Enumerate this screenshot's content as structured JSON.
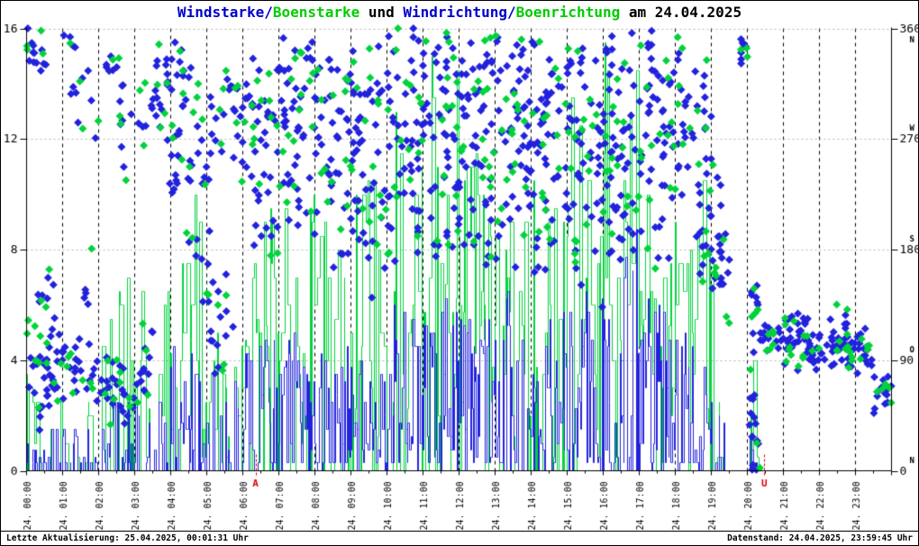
{
  "title": {
    "full": "Windstarke/Boenstarke und Windrichtung/Boenrichtung am 24.04.2025",
    "segments": [
      {
        "text": "Windstarke/",
        "color": "#0000cc"
      },
      {
        "text": "Boenstarke",
        "color": "#00cc00"
      },
      {
        "text": " und ",
        "color": "#000000"
      },
      {
        "text": "Windrichtung/",
        "color": "#0000cc"
      },
      {
        "text": "Boenrichtung",
        "color": "#00cc00"
      },
      {
        "text": " am 24.04.2025",
        "color": "#000000"
      }
    ]
  },
  "status": {
    "last_update": "Letzte Aktualisierung: 25.04.2025, 00:01:31 Uhr",
    "data_state": "Datenstand: 24.04.2025, 23:59:45 Uhr"
  },
  "chart_data": {
    "type": "scatter",
    "subtype": [
      "histeps-speed-bars",
      "diamond-direction-scatter"
    ],
    "title": "Windstarke/Boenstarke und Windrichtung/Boenrichtung am 24.04.2025",
    "date": "24.04.2025",
    "x_axis": {
      "hours_start": 0,
      "hours_end": 24,
      "minor_tick_minutes": 30,
      "hour_labels": [
        "24. 00:00",
        "24. 01:00",
        "24. 02:00",
        "24. 03:00",
        "24. 04:00",
        "24. 05:00",
        "24. 06:00",
        "24. 07:00",
        "24. 08:00",
        "24. 09:00",
        "24. 10:00",
        "24. 11:00",
        "24. 12:00",
        "24. 13:00",
        "24. 14:00",
        "24. 15:00",
        "24. 16:00",
        "24. 17:00",
        "24. 18:00",
        "24. 19:00",
        "24. 20:00",
        "24. 21:00",
        "24. 22:00",
        "24. 23:00"
      ]
    },
    "y_left": {
      "min": 0,
      "max": 16,
      "ticks": [
        0,
        4,
        8,
        12,
        16
      ],
      "measure": "wind speed"
    },
    "y_right": {
      "min": 0,
      "max": 360,
      "ticks": [
        {
          "value": 0,
          "letter": "N"
        },
        {
          "value": 90,
          "letter": "O"
        },
        {
          "value": 180,
          "letter": "S"
        },
        {
          "value": 270,
          "letter": "W"
        },
        {
          "value": 360,
          "letter": "N"
        }
      ],
      "measure": "wind direction"
    },
    "grid": {
      "h_dotted_at": [
        4,
        8,
        12,
        16
      ],
      "v_dashed_every_hour": true
    },
    "colors": {
      "wind": "#2222dd",
      "gust": "#00d23c",
      "text": "#000000",
      "grid_dotted": "#b4b4b4",
      "grid_dashed": "#000000",
      "marker": "#dd0000"
    },
    "series": [
      {
        "name": "Windstarke",
        "style": "histeps",
        "color": "#2222dd",
        "axis": "left"
      },
      {
        "name": "Boenstarke",
        "style": "histeps",
        "color": "#00d23c",
        "axis": "left"
      },
      {
        "name": "Windrichtung",
        "style": "diamond-points",
        "color": "#2222dd",
        "axis": "right"
      },
      {
        "name": "Boenrichtung",
        "style": "diamond-points",
        "color": "#00d23c",
        "axis": "right"
      }
    ],
    "sun_markers": [
      {
        "label": "A",
        "hour": 6.35
      },
      {
        "label": "U",
        "hour": 20.47
      }
    ],
    "seed": 424242,
    "gust_dir_count_ratio": 0.35,
    "gust_dir_jitter_deg": 12,
    "hourly": [
      {
        "hour": 0,
        "bars": [
          2.2,
          0.45,
          5.0,
          0.45,
          0,
          1
        ],
        "dir_clusters": [
          [
            345,
            10,
            12,
            0,
            0.55
          ],
          [
            90,
            20,
            26,
            0,
            1
          ],
          [
            130,
            18,
            8,
            0.3,
            1
          ],
          [
            60,
            12,
            8,
            0.2,
            1
          ]
        ]
      },
      {
        "hour": 1,
        "bars": [
          1.6,
          0.35,
          3.0,
          0.3,
          0,
          1
        ],
        "dir_clusters": [
          [
            78,
            14,
            20,
            0,
            1
          ],
          [
            310,
            26,
            8,
            0.2,
            1
          ],
          [
            345,
            8,
            4,
            0,
            0.4
          ],
          [
            150,
            14,
            4,
            0.5,
            1
          ]
        ]
      },
      {
        "hour": 2,
        "bars": [
          2.6,
          0.45,
          7.5,
          0.4,
          0,
          1
        ],
        "dir_clusters": [
          [
            70,
            12,
            14,
            0,
            0.7
          ],
          [
            55,
            10,
            10,
            0.3,
            1
          ],
          [
            300,
            28,
            10,
            0.3,
            1
          ],
          [
            330,
            12,
            4,
            0,
            0.5
          ]
        ]
      },
      {
        "hour": 3,
        "bars": [
          3.2,
          0.5,
          7.6,
          0.5,
          0,
          1
        ],
        "dir_clusters": [
          [
            290,
            28,
            14,
            0,
            1
          ],
          [
            75,
            14,
            8,
            0,
            0.5
          ],
          [
            320,
            14,
            8,
            0.5,
            1
          ],
          [
            120,
            18,
            4,
            0,
            0.6
          ]
        ]
      },
      {
        "hour": 4,
        "bars": [
          5.0,
          0.7,
          11.0,
          0.65,
          0,
          1
        ],
        "dir_clusters": [
          [
            285,
            28,
            20,
            0,
            1
          ],
          [
            250,
            16,
            8,
            0,
            1
          ],
          [
            180,
            22,
            5,
            0.4,
            1
          ],
          [
            330,
            10,
            5,
            0,
            0.6
          ]
        ]
      },
      {
        "hour": 5,
        "bars": [
          4.0,
          0.65,
          7.5,
          0.6,
          0,
          1
        ],
        "dir_clusters": [
          [
            270,
            28,
            16,
            0,
            1
          ],
          [
            150,
            22,
            10,
            0,
            0.8
          ],
          [
            100,
            14,
            6,
            0,
            0.5
          ],
          [
            310,
            14,
            6,
            0.5,
            1
          ]
        ]
      },
      {
        "hour": 6,
        "bars": [
          5.0,
          0.75,
          9.5,
          0.7,
          0,
          1
        ],
        "dir_clusters": [
          [
            280,
            28,
            22,
            0,
            1
          ],
          [
            190,
            22,
            8,
            0.3,
            1
          ],
          [
            320,
            16,
            8,
            0,
            1
          ]
        ]
      },
      {
        "hour": 7,
        "bars": [
          5.5,
          0.8,
          10.0,
          0.75,
          0,
          1
        ],
        "dir_clusters": [
          [
            300,
            26,
            24,
            0,
            1
          ],
          [
            250,
            20,
            10,
            0,
            1
          ],
          [
            210,
            16,
            5,
            0.4,
            1
          ],
          [
            340,
            9,
            5,
            0,
            1
          ]
        ]
      },
      {
        "hour": 8,
        "bars": [
          4.5,
          0.8,
          9.0,
          0.75,
          0,
          1
        ],
        "dir_clusters": [
          [
            290,
            28,
            22,
            0,
            1
          ],
          [
            225,
            20,
            8,
            0,
            1
          ],
          [
            330,
            11,
            6,
            0,
            1
          ],
          [
            180,
            14,
            4,
            0.5,
            1
          ]
        ]
      },
      {
        "hour": 9,
        "bars": [
          5.5,
          0.82,
          12.0,
          0.78,
          0,
          1
        ],
        "dir_clusters": [
          [
            270,
            32,
            24,
            0,
            1
          ],
          [
            210,
            20,
            10,
            0,
            1
          ],
          [
            320,
            14,
            7,
            0,
            1
          ],
          [
            170,
            16,
            4,
            0.3,
            1
          ]
        ]
      },
      {
        "hour": 10,
        "bars": [
          6.0,
          0.85,
          13.5,
          0.8,
          0,
          1
        ],
        "dir_clusters": [
          [
            280,
            32,
            26,
            0,
            1
          ],
          [
            225,
            22,
            10,
            0,
            1
          ],
          [
            340,
            9,
            6,
            0,
            1
          ],
          [
            190,
            16,
            5,
            0,
            1
          ]
        ]
      },
      {
        "hour": 11,
        "bars": [
          6.5,
          0.85,
          15.0,
          0.8,
          0,
          1
        ],
        "dir_clusters": [
          [
            265,
            36,
            26,
            0,
            1
          ],
          [
            205,
            22,
            10,
            0,
            1
          ],
          [
            310,
            16,
            8,
            0,
            1
          ],
          [
            350,
            7,
            4,
            0.3,
            1
          ]
        ]
      },
      {
        "hour": 12,
        "bars": [
          6.0,
          0.85,
          12.5,
          0.8,
          0,
          1
        ],
        "dir_clusters": [
          [
            280,
            32,
            28,
            0,
            1
          ],
          [
            220,
            25,
            10,
            0,
            1
          ],
          [
            330,
            11,
            6,
            0,
            1
          ],
          [
            180,
            14,
            5,
            0.4,
            1
          ]
        ]
      },
      {
        "hour": 13,
        "bars": [
          7.0,
          0.85,
          13.0,
          0.8,
          0,
          1
        ],
        "dir_clusters": [
          [
            290,
            30,
            28,
            0,
            1
          ],
          [
            235,
            22,
            10,
            0,
            1
          ],
          [
            190,
            16,
            6,
            0,
            1
          ],
          [
            340,
            7,
            4,
            0,
            1
          ]
        ]
      },
      {
        "hour": 14,
        "bars": [
          6.0,
          0.85,
          12.5,
          0.8,
          0,
          1
        ],
        "dir_clusters": [
          [
            280,
            32,
            26,
            0,
            1
          ],
          [
            215,
            20,
            10,
            0,
            1
          ],
          [
            320,
            13,
            7,
            0,
            1
          ],
          [
            175,
            14,
            4,
            0,
            0.8
          ]
        ]
      },
      {
        "hour": 15,
        "bars": [
          6.5,
          0.85,
          13.5,
          0.8,
          0,
          1
        ],
        "dir_clusters": [
          [
            270,
            32,
            26,
            0,
            1
          ],
          [
            220,
            24,
            10,
            0,
            1
          ],
          [
            170,
            16,
            5,
            0.2,
            1
          ],
          [
            330,
            9,
            5,
            0,
            1
          ]
        ]
      },
      {
        "hour": 16,
        "bars": [
          9.5,
          0.85,
          15.8,
          0.8,
          0,
          1
        ],
        "dir_clusters": [
          [
            280,
            32,
            28,
            0,
            1
          ],
          [
            230,
            25,
            12,
            0,
            1
          ],
          [
            180,
            18,
            6,
            0,
            1
          ],
          [
            340,
            7,
            4,
            0,
            0.8
          ]
        ]
      },
      {
        "hour": 17,
        "bars": [
          6.5,
          0.85,
          12.0,
          0.8,
          0,
          1
        ],
        "dir_clusters": [
          [
            300,
            26,
            24,
            0,
            1
          ],
          [
            250,
            24,
            10,
            0,
            1
          ],
          [
            200,
            20,
            8,
            0.2,
            1
          ],
          [
            345,
            7,
            4,
            0,
            0.6
          ]
        ]
      },
      {
        "hour": 18,
        "bars": [
          5.0,
          0.8,
          11.0,
          0.75,
          0,
          1
        ],
        "dir_clusters": [
          [
            290,
            28,
            20,
            0,
            1
          ],
          [
            230,
            24,
            10,
            0,
            1
          ],
          [
            185,
            16,
            8,
            0.4,
            1
          ],
          [
            330,
            9,
            4,
            0,
            0.6
          ]
        ]
      },
      {
        "hour": 19,
        "bars": [
          2.5,
          0.45,
          7.5,
          0.45,
          0,
          0.42
        ],
        "dir_clusters": [
          [
            180,
            16,
            10,
            0,
            0.4
          ],
          [
            150,
            11,
            6,
            0,
            0.5
          ],
          [
            347,
            9,
            8,
            0.82,
            1
          ],
          [
            230,
            18,
            4,
            0,
            0.3
          ]
        ]
      },
      {
        "hour": 20,
        "bars": [
          2.0,
          0.5,
          4.5,
          0.5,
          0.02,
          0.3
        ],
        "dir_clusters": [
          [
            80,
            42,
            12,
            0.05,
            0.3
          ],
          [
            105,
            11,
            18,
            0.35,
            1
          ],
          [
            30,
            14,
            6,
            0.05,
            0.35
          ],
          [
            140,
            9,
            4,
            0.1,
            0.3
          ]
        ]
      },
      {
        "hour": 21,
        "bars": [
          0,
          0,
          0,
          0,
          0,
          0
        ],
        "dir_clusters": [
          [
            103,
            9,
            26,
            0,
            1
          ],
          [
            118,
            6,
            8,
            0,
            0.6
          ],
          [
            88,
            5,
            6,
            0,
            1
          ]
        ]
      },
      {
        "hour": 22,
        "bars": [
          0,
          0,
          0,
          0,
          0,
          0
        ],
        "dir_clusters": [
          [
            100,
            7,
            26,
            0,
            1
          ],
          [
            122,
            7,
            5,
            0.3,
            0.9
          ],
          [
            90,
            5,
            6,
            0,
            1
          ]
        ]
      },
      {
        "hour": 23,
        "bars": [
          0,
          0,
          0,
          0,
          0,
          0
        ],
        "dir_clusters": [
          [
            95,
            7,
            12,
            0,
            0.5
          ],
          [
            63,
            7,
            14,
            0.5,
            1
          ],
          [
            110,
            6,
            4,
            0,
            0.3
          ]
        ]
      }
    ]
  }
}
